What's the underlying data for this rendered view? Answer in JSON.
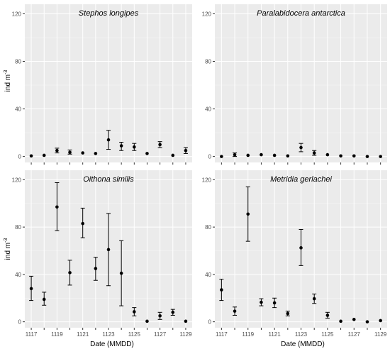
{
  "chart_data": {
    "type": "scatter",
    "style": "points with error bars, faceted 2x2",
    "x": [
      "1117",
      "1118",
      "1119",
      "1120",
      "1121",
      "1122",
      "1123",
      "1124",
      "1125",
      "1126",
      "1127",
      "1128",
      "1129"
    ],
    "xtick_labels": [
      "1117",
      "1119",
      "1121",
      "1123",
      "1125",
      "1127",
      "1129"
    ],
    "xlabel": "Date (MMDD)",
    "ylabel": "ind m",
    "ylabel_superscript": "-3",
    "ylim": [
      -5,
      128
    ],
    "yticks": [
      "0",
      "40",
      "80",
      "120"
    ],
    "grid": true,
    "panels": [
      {
        "title": "Stephos longipes",
        "values": [
          0.5,
          1,
          5,
          3.5,
          3,
          2.5,
          14,
          9,
          8,
          2.5,
          10,
          1,
          5
        ],
        "err_low": [
          0.5,
          1,
          3,
          2,
          3,
          2.5,
          6,
          5,
          5,
          2.5,
          7.5,
          1,
          2.5
        ],
        "err_high": [
          0.5,
          1,
          7,
          5.5,
          3,
          2.5,
          22,
          12,
          11,
          2.5,
          12.5,
          1,
          7.5
        ]
      },
      {
        "title": "Paralabidocera antarctica",
        "values": [
          0,
          1.5,
          1,
          1.5,
          1,
          0.5,
          7.5,
          3,
          1.5,
          0.5,
          0.5,
          0,
          0
        ],
        "err_low": [
          0,
          0,
          1,
          1.5,
          1,
          0.5,
          4,
          1,
          1.5,
          0.5,
          0.5,
          0,
          0
        ],
        "err_high": [
          0,
          3,
          1,
          1.5,
          1,
          0.5,
          11,
          5,
          1.5,
          0.5,
          0.5,
          0,
          0
        ]
      },
      {
        "title": "Oithona similis",
        "values": [
          28,
          19,
          97,
          41.5,
          83,
          45,
          61,
          41,
          8.5,
          0.5,
          5,
          8,
          0.5
        ],
        "err_low": [
          18,
          14,
          77,
          31,
          71,
          35,
          30.5,
          13.5,
          5,
          0.5,
          2,
          5.5,
          0.5
        ],
        "err_high": [
          38.5,
          25,
          117.5,
          52,
          96,
          54.5,
          91.5,
          68.5,
          12,
          0.5,
          8,
          10.5,
          0.5
        ]
      },
      {
        "title": "Metridia gerlachei",
        "values": [
          27,
          9,
          91,
          16.5,
          16,
          7,
          62.5,
          19.5,
          5.5,
          0.5,
          2,
          0,
          1
        ],
        "err_low": [
          18,
          5.5,
          68,
          13.5,
          12,
          5,
          47.5,
          15.5,
          3,
          0.5,
          2,
          0,
          1
        ],
        "err_high": [
          36,
          12.5,
          114,
          19.5,
          20,
          9,
          78,
          23.5,
          8,
          0.5,
          2,
          0,
          1
        ]
      }
    ]
  }
}
